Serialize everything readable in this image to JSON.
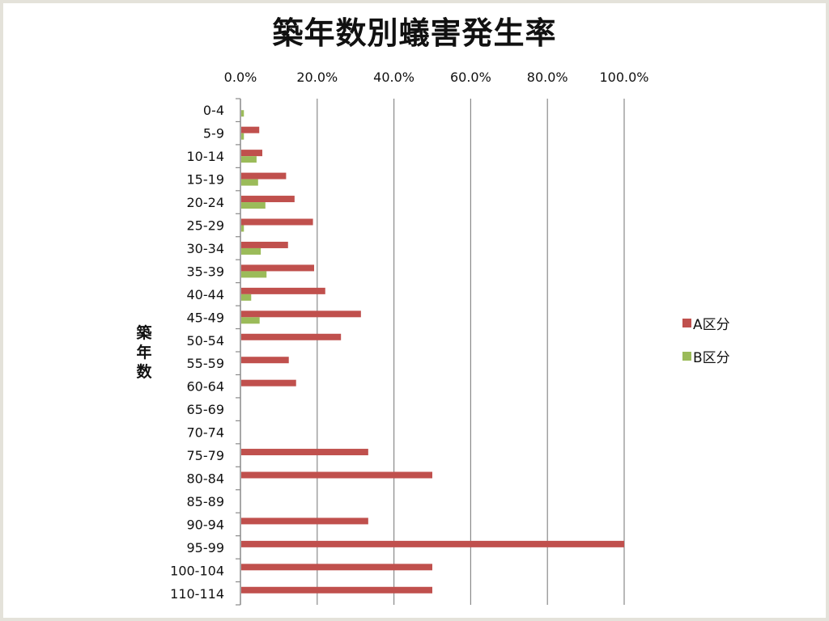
{
  "chart_data": {
    "type": "bar",
    "orientation": "horizontal",
    "title": "築年数別蟻害発生率",
    "ylabel": "築年数",
    "xlabel": "",
    "xlim": [
      0,
      100
    ],
    "x_ticks": [
      "0.0%",
      "20.0%",
      "40.0%",
      "60.0%",
      "80.0%",
      "100.0%"
    ],
    "grid": true,
    "legend_position": "right",
    "categories": [
      "0-4",
      "5-9",
      "10-14",
      "15-19",
      "20-24",
      "25-29",
      "30-34",
      "35-39",
      "40-44",
      "45-49",
      "50-54",
      "55-59",
      "60-64",
      "65-69",
      "70-74",
      "75-79",
      "80-84",
      "85-89",
      "90-94",
      "95-99",
      "100-104",
      "110-114"
    ],
    "series": [
      {
        "name": "A区分",
        "color": "#c0504d",
        "values": [
          0,
          4.9,
          5.7,
          11.9,
          14.1,
          18.9,
          12.4,
          19.2,
          22.1,
          31.4,
          26.2,
          12.6,
          14.5,
          0,
          0,
          33.3,
          50.0,
          0,
          33.3,
          100.0,
          50.0,
          50.0
        ]
      },
      {
        "name": "B区分",
        "color": "#9bbb59",
        "values": [
          0.9,
          0.9,
          4.2,
          4.6,
          6.5,
          0.9,
          5.3,
          6.8,
          2.8,
          5.0,
          0,
          0,
          0,
          0,
          0,
          0,
          0,
          0,
          0,
          0,
          0,
          0
        ]
      }
    ]
  }
}
